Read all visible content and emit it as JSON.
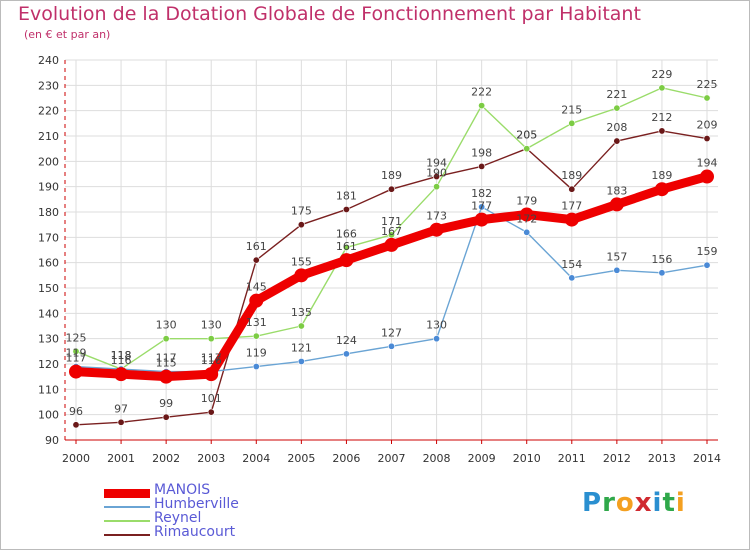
{
  "title": "Evolution de la Dotation Globale de Fonctionnement par Habitant",
  "subtitle": "(en € et par an)",
  "logo": {
    "letters": [
      "P",
      "r",
      "o",
      "x",
      "i",
      "t",
      "i"
    ],
    "colors": [
      "#2a8fd0",
      "#2fa84a",
      "#f4a020",
      "#d02a30",
      "#2a8fd0",
      "#2fa84a",
      "#f4a020"
    ]
  },
  "colors": {
    "title": "#c0306a",
    "axis": "#cc0000",
    "grid": "#dddddd",
    "tick_label": "#333333",
    "value_label": "#444444",
    "legend_text": "#5a5ad6"
  },
  "chart_data": {
    "type": "line",
    "title": "Evolution de la Dotation Globale de Fonctionnement par Habitant",
    "subtitle": "(en € et par an)",
    "x": [
      "2000",
      "2001",
      "2002",
      "2003",
      "2004",
      "2005",
      "2006",
      "2007",
      "2008",
      "2009",
      "2010",
      "2011",
      "2012",
      "2013",
      "2014"
    ],
    "ylim": [
      90,
      240
    ],
    "yticks": [
      90,
      100,
      110,
      120,
      130,
      140,
      150,
      160,
      170,
      180,
      190,
      200,
      210,
      220,
      230,
      240
    ],
    "grid": true,
    "legend": "bottom-left",
    "series": [
      {
        "name": "MANOIS",
        "color": "#ee0000",
        "point_color": "#ee0000",
        "bold": true,
        "values": [
          117,
          116,
          115,
          116,
          145,
          155,
          161,
          167,
          173,
          177,
          179,
          177,
          183,
          189,
          194
        ]
      },
      {
        "name": "Humberville",
        "color": "#6aa4d4",
        "point_color": "#4a8ad6",
        "values": [
          119,
          118,
          117,
          117,
          119,
          121,
          124,
          127,
          130,
          182,
          172,
          154,
          157,
          156,
          159
        ]
      },
      {
        "name": "Reynel",
        "color": "#9adc6a",
        "point_color": "#7ccc44",
        "values": [
          125,
          118,
          130,
          130,
          131,
          135,
          166,
          171,
          190,
          222,
          205,
          215,
          221,
          229,
          225
        ]
      },
      {
        "name": "Rimaucourt",
        "color": "#7a2020",
        "point_color": "#6a1818",
        "values": [
          96,
          97,
          99,
          101,
          161,
          175,
          181,
          189,
          194,
          198,
          205,
          189,
          208,
          212,
          209
        ]
      }
    ]
  }
}
